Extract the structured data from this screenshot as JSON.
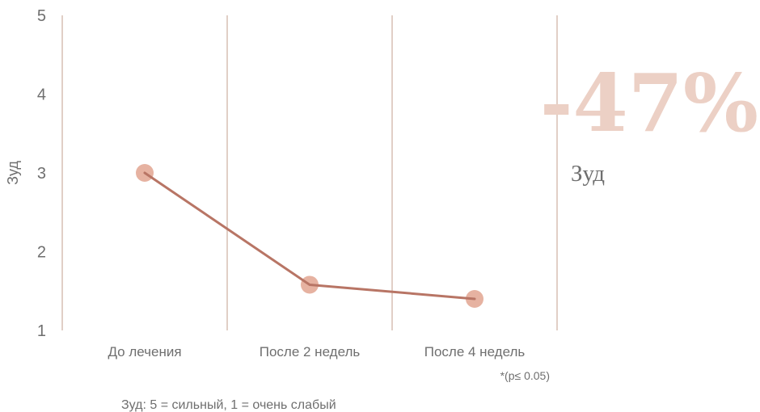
{
  "chart_data": {
    "type": "line",
    "categories": [
      "До лечения",
      "После 2 недель",
      "После 4 недель"
    ],
    "values": [
      3.0,
      1.58,
      1.4
    ],
    "ylabel": "Зуд",
    "ylim": [
      1,
      5
    ],
    "yticks": [
      1,
      2,
      3,
      4,
      5
    ],
    "grid": "vertical",
    "significance_note": "*(p≤ 0.05)",
    "scale_note": "Зуд: 5 = сильный, 1 = очень слабый",
    "highlight_value": "-47%",
    "highlight_label": "Зуд"
  },
  "colors": {
    "line": "#b87565",
    "marker": "#e6b2a1",
    "gridline": "#d7bfb3",
    "highlight": "#ecd0c5",
    "text": "#6f6f6f"
  }
}
